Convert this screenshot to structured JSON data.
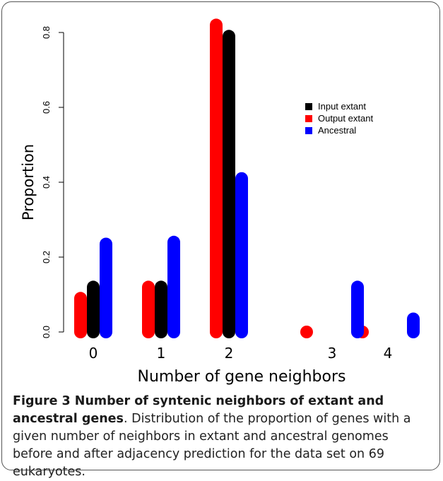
{
  "chart_data": {
    "type": "bar",
    "xlabel": "Number of gene neighbors",
    "ylabel": "Proportion",
    "categories": [
      "0",
      "1",
      "2",
      "3",
      "4"
    ],
    "ylim": [
      0,
      0.8
    ],
    "yticks": [
      "0.0",
      "0.2",
      "0.4",
      "0.6",
      "0.8"
    ],
    "grid": false,
    "legend_position": "right, upper-middle",
    "series": [
      {
        "name": "Output extant",
        "color": "#ff0000",
        "values": [
          0.09,
          0.12,
          0.82,
          0.0,
          0.0
        ]
      },
      {
        "name": "Input extant",
        "color": "#000000",
        "values": [
          0.12,
          0.12,
          0.79,
          null,
          null
        ]
      },
      {
        "name": "Ancestral",
        "color": "#0000ff",
        "values": [
          0.235,
          0.24,
          0.41,
          0.12,
          0.035
        ]
      }
    ],
    "legend_order": [
      "Input extant",
      "Output extant",
      "Ancestral"
    ]
  },
  "caption": {
    "bold": "Figure 3 Number of syntenic neighbors of extant and ancestral genes",
    "text": ". Distribution of the proportion of genes with a given number of neighbors in extant and ancestral genomes before and after adjacency prediction for the data set on 69 eukaryotes."
  }
}
